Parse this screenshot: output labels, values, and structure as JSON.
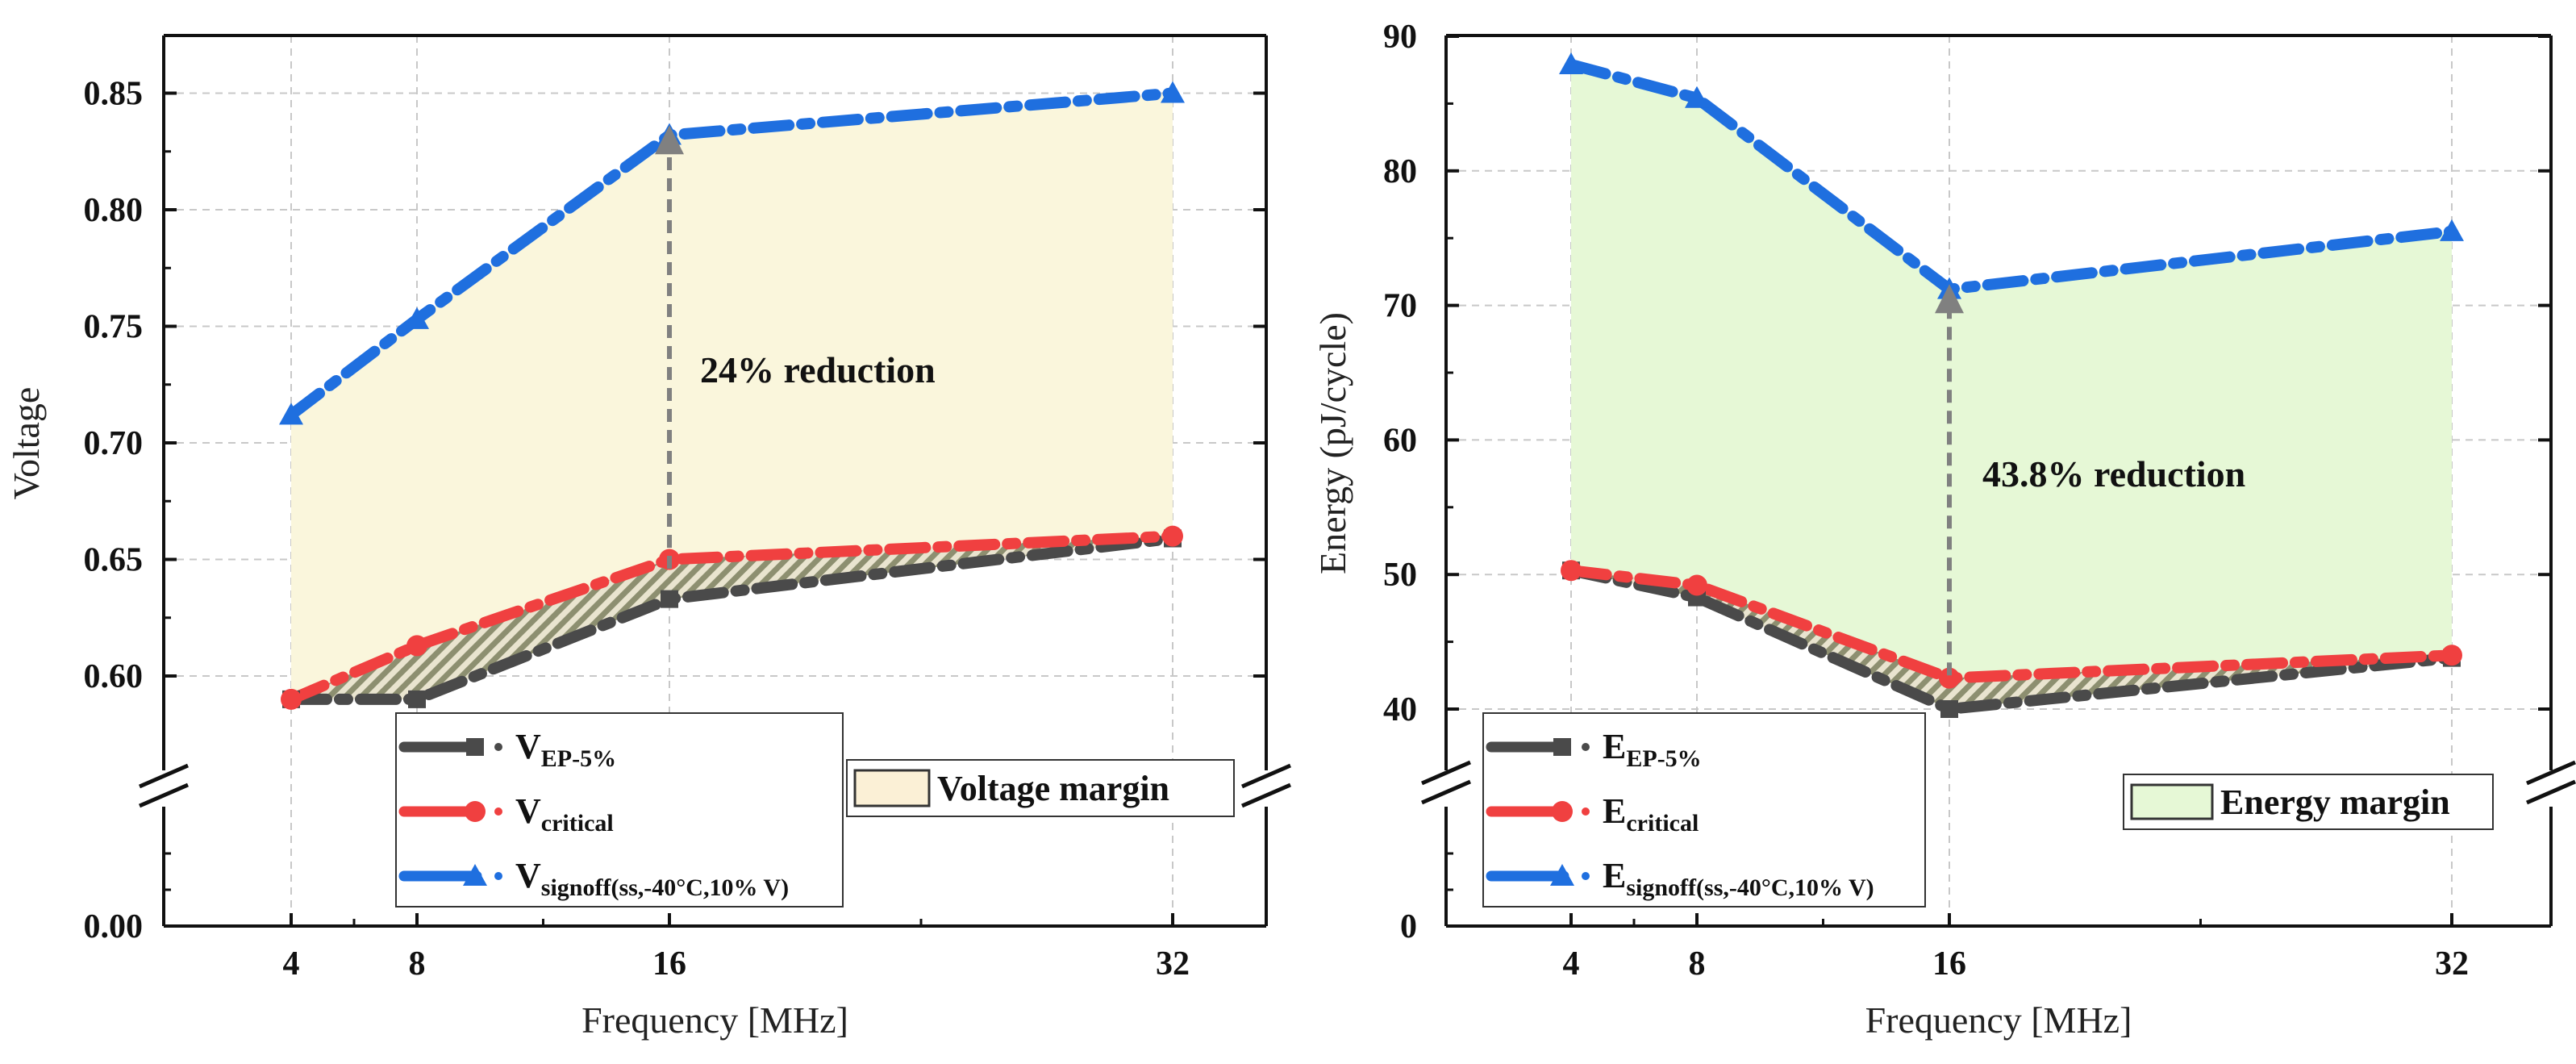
{
  "chart_data": [
    {
      "type": "line",
      "id": "voltage",
      "title": "",
      "xlabel": "Frequency [MHz]",
      "ylabel": "Voltage",
      "x": [
        4,
        8,
        16,
        32
      ],
      "xticks": [
        "4",
        "8",
        "16",
        "32"
      ],
      "yticks_upper": [
        "0.60",
        "0.65",
        "0.70",
        "0.75",
        "0.80",
        "0.85"
      ],
      "ytick_lower": "0.00",
      "ylim_upper": [
        0.565,
        0.875
      ],
      "ylim_lower": [
        0.0,
        0.06
      ],
      "axis_break": true,
      "series": [
        {
          "name": "V_EP-5%",
          "label_main": "V",
          "label_sub": "EP-5%",
          "color": "#4a4a4a",
          "marker": "square",
          "values": [
            0.59,
            0.59,
            0.633,
            0.659
          ]
        },
        {
          "name": "V_critical",
          "label_main": "V",
          "label_sub": "critical",
          "color": "#f04040",
          "marker": "circle",
          "values": [
            0.59,
            0.613,
            0.65,
            0.66
          ]
        },
        {
          "name": "V_signoff(ss,-40°C,10% V)",
          "label_main": "V",
          "label_sub": "signoff(ss,-40°C,10% V)",
          "color": "#1f6fdf",
          "marker": "triangle",
          "values": [
            0.712,
            0.753,
            0.832,
            0.85
          ]
        }
      ],
      "margin_fill_color": "#faf6dc",
      "margin_legend_color": "#fbf0d6",
      "margin_label": "Voltage margin",
      "annotation": {
        "text": "24% reduction",
        "x": 16,
        "from": 0.646,
        "to": 0.83
      }
    },
    {
      "type": "line",
      "id": "energy",
      "title": "",
      "xlabel": "Frequency [MHz]",
      "ylabel": "Energy (pJ/cycle)",
      "x": [
        4,
        8,
        16,
        32
      ],
      "xticks": [
        "4",
        "8",
        "16",
        "32"
      ],
      "yticks_upper": [
        "40",
        "50",
        "60",
        "70",
        "80",
        "90"
      ],
      "ytick_lower": "0",
      "ylim_upper": [
        35,
        90
      ],
      "ylim_lower": [
        0,
        10
      ],
      "axis_break": true,
      "series": [
        {
          "name": "E_EP-5%",
          "label_main": "E",
          "label_sub": "EP-5%",
          "color": "#4a4a4a",
          "marker": "square",
          "values": [
            50.3,
            48.3,
            40.0,
            43.8
          ]
        },
        {
          "name": "E_critical",
          "label_main": "E",
          "label_sub": "critical",
          "color": "#f04040",
          "marker": "circle",
          "values": [
            50.3,
            49.2,
            42.3,
            44.0
          ]
        },
        {
          "name": "E_signoff(ss,-40°C,10% V)",
          "label_main": "E",
          "label_sub": "signoff(ss,-40°C,10% V)",
          "color": "#1f6fdf",
          "marker": "triangle",
          "values": [
            87.9,
            85.4,
            71.2,
            75.5
          ]
        }
      ],
      "margin_fill_color": "#e6f8d6",
      "margin_legend_color": "#e6f8d6",
      "margin_label": "Energy margin",
      "annotation": {
        "text": "43.8% reduction",
        "x": 16,
        "from": 42.5,
        "to": 70.5
      }
    }
  ]
}
